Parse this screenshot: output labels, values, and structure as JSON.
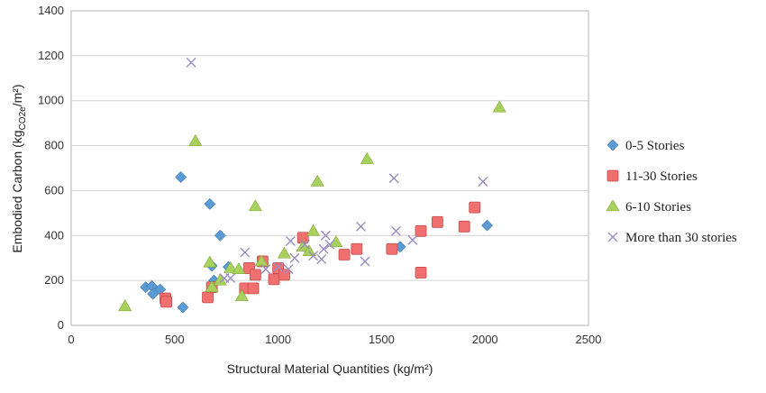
{
  "chart_data": {
    "type": "scatter",
    "xlabel": "Structural Material Quantities (kg/m²)",
    "ylabel_main": "Embodied Carbon (kg",
    "ylabel_sub": "CO2e",
    "ylabel_end": "/m²)",
    "xlim": [
      0,
      2500
    ],
    "ylim": [
      0,
      1400
    ],
    "xticks": [
      0,
      500,
      1000,
      1500,
      2000,
      2500
    ],
    "yticks": [
      0,
      200,
      400,
      600,
      800,
      1000,
      1200,
      1400
    ],
    "grid": "horizontal",
    "legend_position": "right",
    "series": [
      {
        "name": "0-5 Stories",
        "marker": "diamond",
        "color": "#5b9bd5",
        "points": [
          [
            360,
            170
          ],
          [
            390,
            175
          ],
          [
            395,
            140
          ],
          [
            430,
            160
          ],
          [
            530,
            660
          ],
          [
            540,
            80
          ],
          [
            670,
            540
          ],
          [
            680,
            265
          ],
          [
            690,
            200
          ],
          [
            720,
            400
          ],
          [
            760,
            260
          ],
          [
            1590,
            350
          ],
          [
            2010,
            445
          ]
        ]
      },
      {
        "name": "11-30 Stories",
        "marker": "square",
        "color": "#f07070",
        "points": [
          [
            455,
            120
          ],
          [
            460,
            105
          ],
          [
            660,
            125
          ],
          [
            680,
            170
          ],
          [
            840,
            165
          ],
          [
            860,
            255
          ],
          [
            880,
            165
          ],
          [
            890,
            225
          ],
          [
            925,
            285
          ],
          [
            980,
            205
          ],
          [
            1000,
            255
          ],
          [
            1030,
            225
          ],
          [
            1120,
            390
          ],
          [
            1320,
            315
          ],
          [
            1380,
            340
          ],
          [
            1550,
            340
          ],
          [
            1690,
            420
          ],
          [
            1690,
            235
          ],
          [
            1770,
            460
          ],
          [
            1900,
            440
          ],
          [
            1950,
            525
          ]
        ]
      },
      {
        "name": "6-10 Stories",
        "marker": "triangle",
        "color": "#a8d05c",
        "points": [
          [
            260,
            85
          ],
          [
            600,
            820
          ],
          [
            670,
            280
          ],
          [
            680,
            170
          ],
          [
            720,
            200
          ],
          [
            770,
            255
          ],
          [
            810,
            250
          ],
          [
            825,
            130
          ],
          [
            890,
            530
          ],
          [
            920,
            285
          ],
          [
            1030,
            320
          ],
          [
            1120,
            350
          ],
          [
            1150,
            330
          ],
          [
            1170,
            420
          ],
          [
            1190,
            640
          ],
          [
            1280,
            370
          ],
          [
            1430,
            740
          ],
          [
            2070,
            970
          ]
        ]
      },
      {
        "name": "More than 30 stories",
        "marker": "x",
        "color": "#9a8cc2",
        "points": [
          [
            580,
            1170
          ],
          [
            740,
            210
          ],
          [
            770,
            210
          ],
          [
            840,
            325
          ],
          [
            940,
            250
          ],
          [
            1000,
            260
          ],
          [
            1050,
            250
          ],
          [
            1060,
            375
          ],
          [
            1080,
            300
          ],
          [
            1130,
            360
          ],
          [
            1170,
            310
          ],
          [
            1210,
            295
          ],
          [
            1220,
            340
          ],
          [
            1230,
            400
          ],
          [
            1250,
            360
          ],
          [
            1400,
            440
          ],
          [
            1420,
            285
          ],
          [
            1560,
            655
          ],
          [
            1570,
            420
          ],
          [
            1650,
            380
          ],
          [
            1990,
            640
          ]
        ]
      }
    ]
  }
}
